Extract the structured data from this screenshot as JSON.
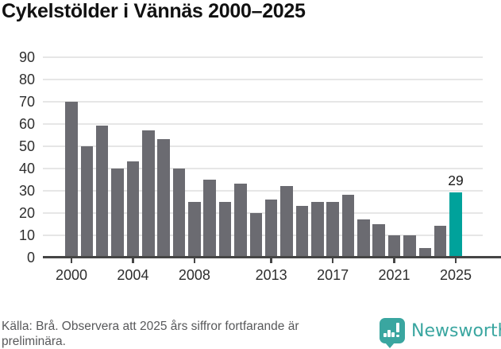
{
  "title": "Cykelstölder i Vännäs 2000–2025",
  "chart_data": {
    "type": "bar",
    "title": "Cykelstölder i Vännäs 2000–2025",
    "categories": [
      2000,
      2001,
      2002,
      2003,
      2004,
      2005,
      2006,
      2007,
      2008,
      2009,
      2010,
      2011,
      2012,
      2013,
      2014,
      2015,
      2016,
      2017,
      2018,
      2019,
      2020,
      2021,
      2022,
      2023,
      2024,
      2025
    ],
    "values": [
      70,
      50,
      59,
      40,
      43,
      57,
      53,
      40,
      25,
      35,
      25,
      33,
      20,
      26,
      32,
      23,
      25,
      25,
      28,
      17,
      15,
      10,
      10,
      4,
      14,
      29
    ],
    "xlabel": "",
    "ylabel": "",
    "ylim": [
      0,
      90
    ],
    "yticks": [
      0,
      10,
      20,
      30,
      40,
      50,
      60,
      70,
      80,
      90
    ],
    "xtick_years": [
      2000,
      2004,
      2008,
      2013,
      2017,
      2021,
      2025
    ],
    "grid": true,
    "legend_position": "none",
    "bar_color": "#6b6b71",
    "highlight_year": 2025,
    "highlight_color": "#00a29b",
    "annotation": {
      "year": 2025,
      "text": "29"
    }
  },
  "footer": {
    "source_line1": "Källa: Brå. Observera att 2025 års siffror fortfarande är",
    "source_line2": "preliminära."
  },
  "branding": {
    "name": "Newsworthy",
    "logo_icon": "speech-bubble-bar-chart-icon",
    "color": "#3aa6a0"
  }
}
